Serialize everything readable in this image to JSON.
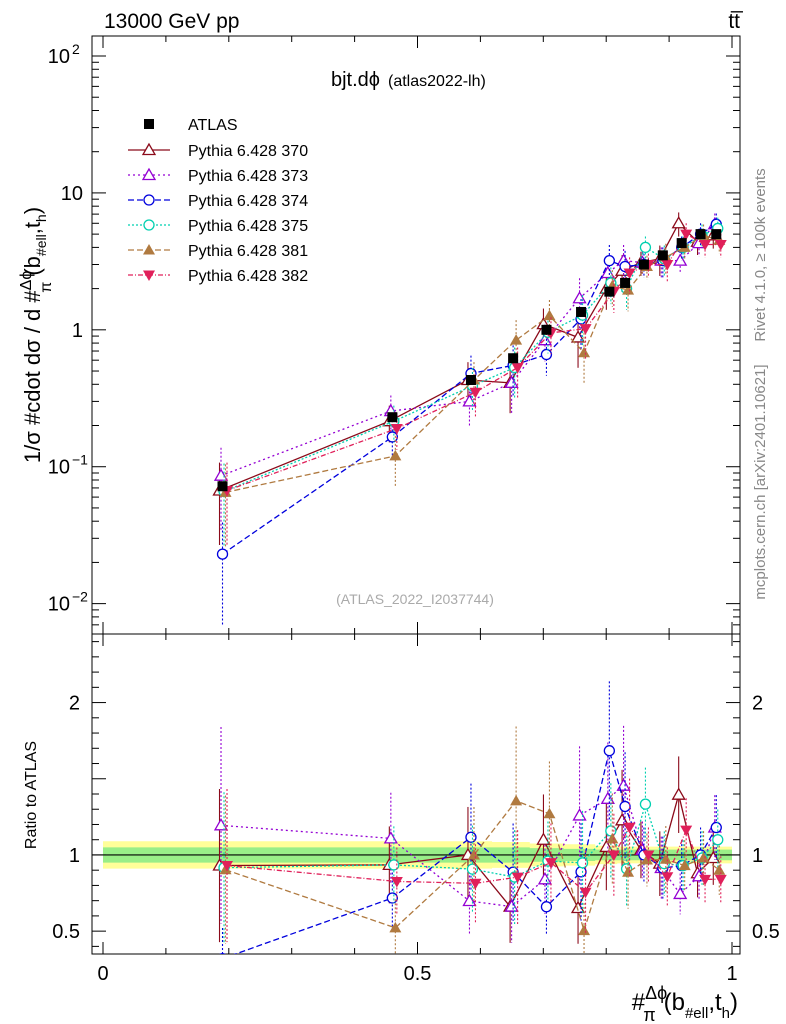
{
  "header": {
    "energy": "13000 GeV pp",
    "process": "tt̅",
    "rivet": "Rivet 4.1.0, ≥ 100k events",
    "mcplots": "mcplots.cern.ch [arXiv:2401.10621]"
  },
  "chart_data": {
    "type": "line",
    "title_main": "bjt.dϕ",
    "title_sub": "(atlas2022-lh)",
    "analysis_id": "(ATLAS_2022_I2037744)",
    "ylabel_main": "1/σ #cdot dσ / d #Δϕ/π(b#ell,th)",
    "ylabel_main_parts": [
      "1/σ #cdot dσ / d #",
      "Δϕ",
      "π",
      "(b",
      "#ell",
      ",t",
      "h",
      ")"
    ],
    "ylabel_ratio": "Ratio to ATLAS",
    "xlabel": "#Δϕ/π(b#ell,th)",
    "xlabel_parts": [
      "#",
      "Δϕ",
      "π",
      "(b",
      "#ell",
      ",t",
      "h",
      ")"
    ],
    "xlim": [
      0,
      1
    ],
    "ylim_main": [
      0.006,
      140
    ],
    "ylim_ratio": [
      0.35,
      2.45
    ],
    "y_scale_main": "log",
    "x_ticks": [
      "0",
      "0.5",
      "1"
    ],
    "y_ticks_main": [
      {
        "value": 0.01,
        "base": "10",
        "exp": "−2"
      },
      {
        "value": 0.1,
        "base": "10",
        "exp": "−1"
      },
      {
        "value": 1,
        "base": "1",
        "exp": ""
      },
      {
        "value": 10,
        "base": "10",
        "exp": ""
      },
      {
        "value": 100,
        "base": "10",
        "exp": "2"
      }
    ],
    "y_ticks_ratio": [
      "0.5",
      "1",
      "2"
    ],
    "x": [
      0.19,
      0.46,
      0.585,
      0.652,
      0.705,
      0.76,
      0.805,
      0.83,
      0.86,
      0.89,
      0.92,
      0.95,
      0.975
    ],
    "data": {
      "name": "ATLAS",
      "values": [
        0.072,
        0.23,
        0.43,
        0.62,
        1.0,
        1.35,
        1.9,
        2.2,
        3.0,
        3.5,
        4.3,
        5.0,
        5.0
      ],
      "band_inner": [
        0.05,
        0.05,
        0.05,
        0.05,
        0.045,
        0.04,
        0.035,
        0.035,
        0.035,
        0.035,
        0.035,
        0.035,
        0.035
      ],
      "band_outer": [
        0.09,
        0.09,
        0.09,
        0.085,
        0.075,
        0.07,
        0.06,
        0.055,
        0.055,
        0.055,
        0.055,
        0.055,
        0.055
      ],
      "color": "#000000"
    },
    "series": [
      {
        "name": "Pythia 6.428 370",
        "color": "#8b0a1a",
        "marker": "triangle-open",
        "dash": "",
        "values": [
          0.067,
          0.215,
          0.43,
          0.41,
          1.1,
          0.88,
          2.0,
          2.7,
          3.1,
          3.3,
          6.0,
          4.4,
          4.9
        ],
        "rel_err": [
          0.6,
          0.3,
          0.35,
          0.4,
          0.3,
          0.4,
          0.3,
          0.3,
          0.2,
          0.25,
          0.2,
          0.2,
          0.2
        ]
      },
      {
        "name": "Pythia 6.428 373",
        "color": "#9400d3",
        "marker": "triangle-open",
        "dash": "2,3",
        "values": [
          0.086,
          0.255,
          0.3,
          0.41,
          0.84,
          1.7,
          2.6,
          3.2,
          3.1,
          3.2,
          3.2,
          4.3,
          5.9
        ],
        "rel_err": [
          0.6,
          0.3,
          0.35,
          0.4,
          0.3,
          0.4,
          0.3,
          0.3,
          0.2,
          0.25,
          0.2,
          0.2,
          0.2
        ]
      },
      {
        "name": "Pythia 6.428 374",
        "color": "#0000dd",
        "marker": "circle-open",
        "dash": "6,3",
        "values": [
          0.023,
          0.165,
          0.48,
          0.55,
          0.66,
          1.2,
          3.2,
          2.9,
          3.0,
          3.2,
          4.0,
          5.0,
          5.9
        ],
        "rel_err": [
          0.7,
          0.3,
          0.35,
          0.4,
          0.3,
          0.4,
          0.3,
          0.3,
          0.2,
          0.25,
          0.2,
          0.2,
          0.2
        ]
      },
      {
        "name": "Pythia 6.428 375",
        "color": "#00d0b0",
        "marker": "circle-open",
        "dash": "2,2",
        "values": [
          0.066,
          0.215,
          0.39,
          0.53,
          0.96,
          1.28,
          2.2,
          2.0,
          4.0,
          3.3,
          4.0,
          4.9,
          5.5
        ],
        "rel_err": [
          0.6,
          0.3,
          0.35,
          0.4,
          0.3,
          0.4,
          0.3,
          0.3,
          0.2,
          0.25,
          0.2,
          0.2,
          0.2
        ]
      },
      {
        "name": "Pythia 6.428 381",
        "color": "#b07a40",
        "marker": "triangle-filled",
        "dash": "6,3",
        "values": [
          0.065,
          0.12,
          0.43,
          0.84,
          1.27,
          0.68,
          2.1,
          1.95,
          2.9,
          3.4,
          4.0,
          4.9,
          4.5
        ],
        "rel_err": [
          0.6,
          0.4,
          0.35,
          0.4,
          0.3,
          0.4,
          0.3,
          0.3,
          0.2,
          0.25,
          0.2,
          0.2,
          0.2
        ]
      },
      {
        "name": "Pythia 6.428 382",
        "color": "#e0205a",
        "marker": "triangle-down-filled",
        "dash": "5,2,1,2",
        "values": [
          0.067,
          0.19,
          0.35,
          0.53,
          0.95,
          1.02,
          1.9,
          2.6,
          3.0,
          3.0,
          5.0,
          4.2,
          4.2
        ],
        "rel_err": [
          0.6,
          0.3,
          0.35,
          0.4,
          0.3,
          0.4,
          0.3,
          0.3,
          0.2,
          0.25,
          0.2,
          0.2,
          0.2
        ]
      }
    ]
  }
}
